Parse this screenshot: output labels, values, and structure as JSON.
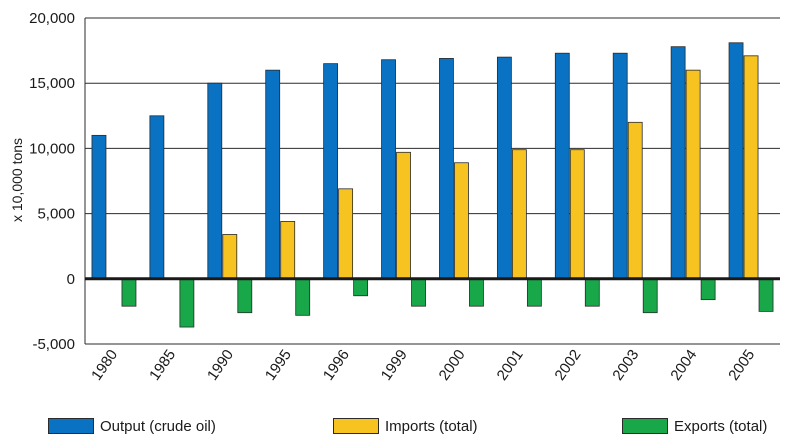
{
  "chart_data": {
    "type": "bar",
    "ylabel": "x 10,000 tons",
    "ylim": [
      -5000,
      20000
    ],
    "yticks": [
      20000,
      15000,
      10000,
      5000,
      0,
      -5000
    ],
    "ytick_labels": [
      "20,000",
      "15,000",
      "10,000",
      "5,000",
      "0",
      "-5,000"
    ],
    "grid": true,
    "legend_position": "bottom",
    "categories": [
      "1980",
      "1985",
      "1990",
      "1995",
      "1996",
      "1999",
      "2000",
      "2001",
      "2002",
      "2003",
      "2004",
      "2005"
    ],
    "series": [
      {
        "name": "Output (crude oil)",
        "color": "#0a72c2",
        "values": [
          11000,
          12500,
          15000,
          16000,
          16500,
          16800,
          16900,
          17000,
          17300,
          17300,
          17800,
          18100
        ]
      },
      {
        "name": "Imports (total)",
        "color": "#f7c320",
        "values": [
          null,
          null,
          3400,
          4400,
          6900,
          9700,
          8900,
          9900,
          9900,
          12000,
          16000,
          17100
        ]
      },
      {
        "name": "Exports (total)",
        "color": "#18a84a",
        "values": [
          -2100,
          -3700,
          -2600,
          -2800,
          -1300,
          -2100,
          -2100,
          -2100,
          -2100,
          -2600,
          -1600,
          -2500
        ]
      }
    ]
  }
}
